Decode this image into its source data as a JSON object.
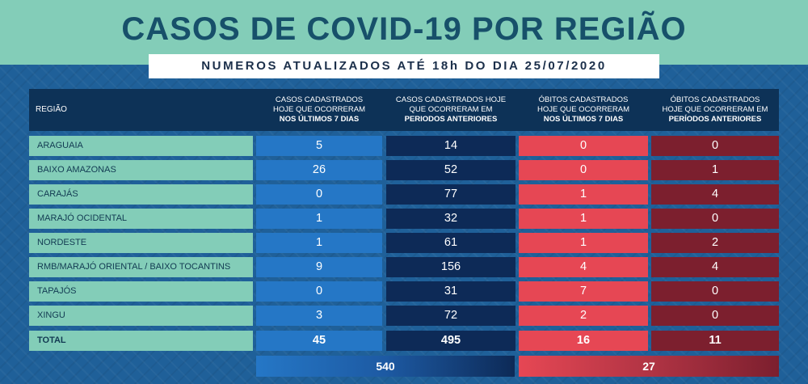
{
  "title": "CASOS DE COVID-19 POR REGIÃO",
  "subtitle": "NUMEROS ATUALIZADOS ATÉ 18h DO DIA 25/07/2020",
  "columns": {
    "region": "REGIÃO",
    "c1": {
      "line1": "CASOS CADASTRADOS",
      "line2": "HOJE QUE OCORRERAM",
      "line3": "NOS ÚLTIMOS 7 DIAS"
    },
    "c2": {
      "line1": "CASOS CADASTRADOS HOJE",
      "line2": "QUE OCORRERAM EM",
      "line3": "PERIODOS ANTERIORES"
    },
    "c3": {
      "line1": "ÓBITOS CADASTRADOS",
      "line2": "HOJE QUE OCORRERAM",
      "line3": "NOS ÚLTIMOS 7 DIAS"
    },
    "c4": {
      "line1": "ÓBITOS CADASTRADOS",
      "line2": "HOJE QUE OCORRERAM EM",
      "line3": "PERÍODOS ANTERIORES"
    }
  },
  "rows": [
    {
      "region": "ARAGUAIA",
      "c1": "5",
      "c2": "14",
      "c3": "0",
      "c4": "0"
    },
    {
      "region": "BAIXO AMAZONAS",
      "c1": "26",
      "c2": "52",
      "c3": "0",
      "c4": "1"
    },
    {
      "region": "CARAJÁS",
      "c1": "0",
      "c2": "77",
      "c3": "1",
      "c4": "4"
    },
    {
      "region": "MARAJÓ OCIDENTAL",
      "c1": "1",
      "c2": "32",
      "c3": "1",
      "c4": "0"
    },
    {
      "region": "NORDESTE",
      "c1": "1",
      "c2": "61",
      "c3": "1",
      "c4": "2"
    },
    {
      "region": "RMB/MARAJÓ ORIENTAL / BAIXO TOCANTINS",
      "c1": "9",
      "c2": "156",
      "c3": "4",
      "c4": "4"
    },
    {
      "region": "TAPAJÓS",
      "c1": "0",
      "c2": "31",
      "c3": "7",
      "c4": "0"
    },
    {
      "region": "XINGU",
      "c1": "3",
      "c2": "72",
      "c3": "2",
      "c4": "0"
    }
  ],
  "total": {
    "region": "TOTAL",
    "c1": "45",
    "c2": "495",
    "c3": "16",
    "c4": "11"
  },
  "sums": {
    "cases": "540",
    "deaths": "27"
  },
  "colors": {
    "region_bg": "#83cdb8",
    "c1": "#2577c6",
    "c2": "#0d2a57",
    "c3": "#e64754",
    "c4": "#7c1f2e",
    "header_bg": "#0d3257"
  }
}
